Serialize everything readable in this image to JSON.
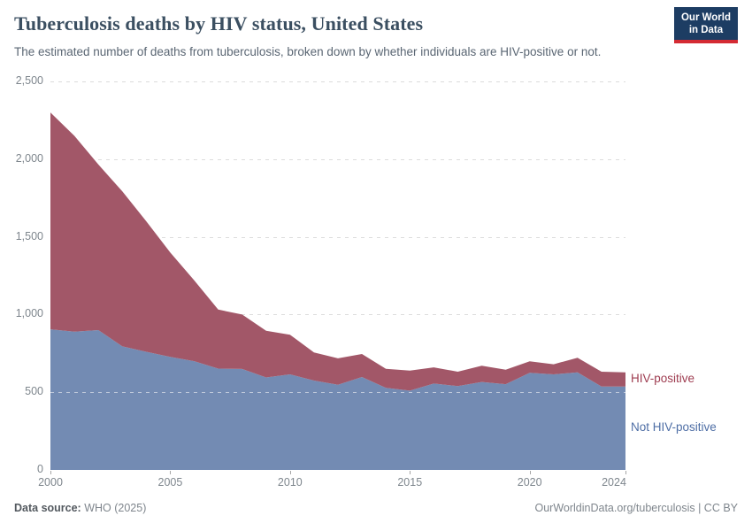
{
  "header": {
    "title": "Tuberculosis deaths by HIV status, United States",
    "subtitle": "The estimated number of deaths from tuberculosis, broken down by whether individuals are HIV-positive or not.",
    "logo": {
      "line1": "Our World",
      "line2": "in Data",
      "bg": "#1d3d63",
      "accent": "#d42a33"
    }
  },
  "chart_data": {
    "type": "area",
    "stacked": true,
    "title": "Tuberculosis deaths by HIV status, United States",
    "subtitle": "The estimated number of deaths from tuberculosis, broken down by whether individuals are HIV-positive or not.",
    "xlabel": "",
    "ylabel": "",
    "x": [
      2000,
      2001,
      2002,
      2003,
      2004,
      2005,
      2006,
      2007,
      2008,
      2009,
      2010,
      2011,
      2012,
      2013,
      2014,
      2015,
      2016,
      2017,
      2018,
      2019,
      2020,
      2021,
      2022,
      2023,
      2024
    ],
    "series": [
      {
        "name": "Not HIV-positive",
        "color": "#5b77a6",
        "label_color": "#4e6ea5",
        "values": [
          905,
          890,
          900,
          795,
          760,
          727,
          700,
          652,
          650,
          595,
          615,
          575,
          548,
          598,
          528,
          510,
          556,
          540,
          566,
          552,
          625,
          615,
          628,
          537,
          537
        ]
      },
      {
        "name": "HIV-positive",
        "color": "#a25768",
        "label_color": "#9e3c50",
        "values": [
          1395,
          1260,
          1065,
          997,
          840,
          673,
          520,
          380,
          350,
          300,
          255,
          181,
          170,
          148,
          123,
          129,
          104,
          92,
          104,
          93,
          74,
          65,
          94,
          95,
          91
        ]
      }
    ],
    "ylim": [
      0,
      2500
    ],
    "yticks": [
      0,
      500,
      1000,
      1500,
      2000,
      2500
    ],
    "ytick_labels": [
      "0",
      "500",
      "1,000",
      "1,500",
      "2,000",
      "2,500"
    ],
    "xticks": [
      2000,
      2005,
      2010,
      2015,
      2020,
      2024
    ],
    "grid": "horizontal-dashed",
    "legend_position": "right-of-plot"
  },
  "footer": {
    "source_label": "Data source:",
    "source_value": " WHO (2025)",
    "credit": "OurWorldinData.org/tuberculosis | CC BY"
  }
}
